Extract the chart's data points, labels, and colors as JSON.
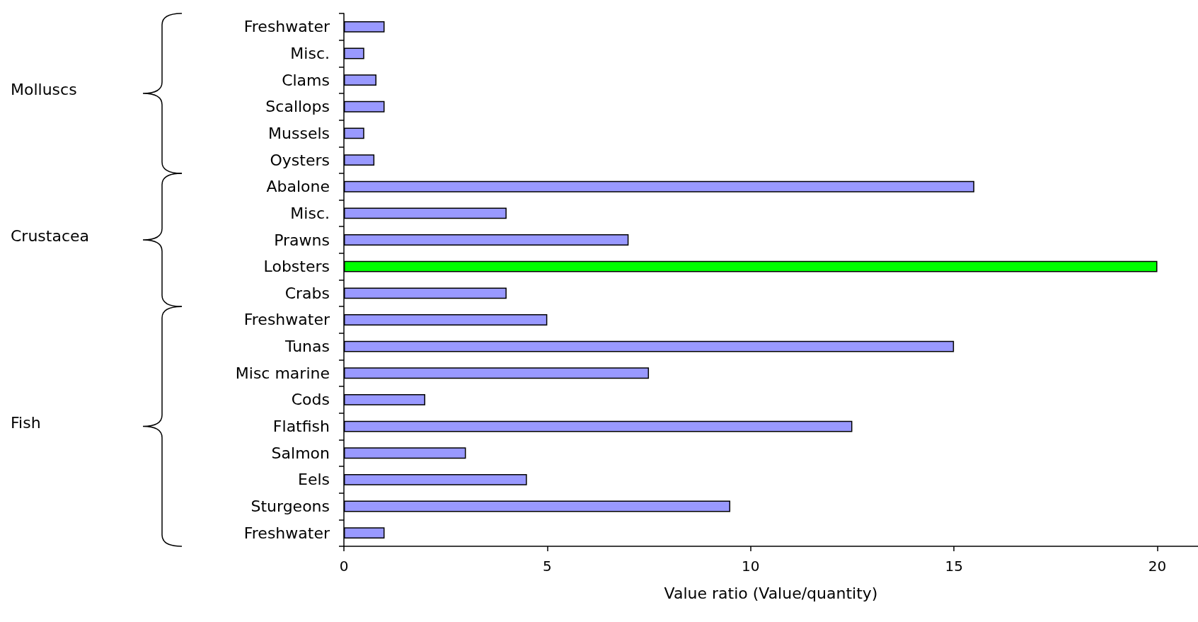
{
  "chart_data": {
    "type": "bar",
    "orientation": "horizontal",
    "xlabel": "Value ratio (Value/quantity)",
    "categories": [
      "Freshwater",
      "Misc.",
      "Clams",
      "Scallops",
      "Mussels",
      "Oysters",
      "Abalone",
      "Misc.",
      "Prawns",
      "Lobsters",
      "Crabs",
      "Freshwater",
      "Tunas",
      "Misc marine",
      "Cods",
      "Flatfish",
      "Salmon",
      "Eels",
      "Sturgeons",
      "Freshwater"
    ],
    "values": [
      1,
      0.5,
      0.8,
      1,
      0.5,
      0.75,
      15.5,
      4,
      7,
      20,
      4,
      5,
      15,
      7.5,
      2,
      12.5,
      3,
      4.5,
      9.5,
      1
    ],
    "colors": [
      "#9999ff",
      "#9999ff",
      "#9999ff",
      "#9999ff",
      "#9999ff",
      "#9999ff",
      "#9999ff",
      "#9999ff",
      "#9999ff",
      "#00ff00",
      "#9999ff",
      "#9999ff",
      "#9999ff",
      "#9999ff",
      "#9999ff",
      "#9999ff",
      "#9999ff",
      "#9999ff",
      "#9999ff",
      "#9999ff"
    ],
    "xlim": [
      0,
      21
    ],
    "xticks": [
      0,
      5,
      10,
      15,
      20
    ],
    "annotations": [
      "Molluscs",
      "Crustacea",
      "Fish"
    ]
  }
}
